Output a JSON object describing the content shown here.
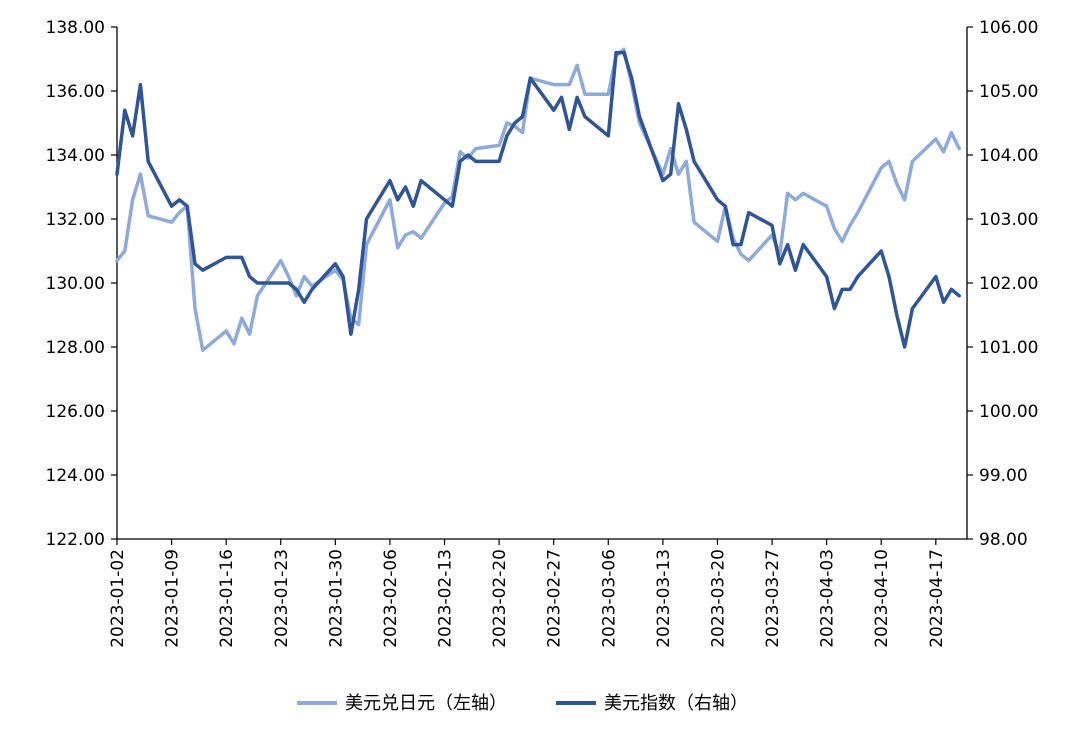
{
  "chart_data": {
    "type": "line",
    "title": "",
    "xlabel": "",
    "ylabel": "",
    "y_left": {
      "ylim": [
        122,
        138
      ],
      "ticks": [
        "122.00",
        "124.00",
        "126.00",
        "128.00",
        "130.00",
        "132.00",
        "134.00",
        "136.00",
        "138.00"
      ]
    },
    "y_right": {
      "ylim": [
        98,
        106
      ],
      "ticks": [
        "98.00",
        "99.00",
        "100.00",
        "101.00",
        "102.00",
        "103.00",
        "104.00",
        "105.00",
        "106.00"
      ]
    },
    "x_ticks": [
      "2023-01-02",
      "2023-01-09",
      "2023-01-16",
      "2023-01-23",
      "2023-01-30",
      "2023-02-06",
      "2023-02-13",
      "2023-02-20",
      "2023-02-27",
      "2023-03-06",
      "2023-03-13",
      "2023-03-20",
      "2023-03-27",
      "2023-04-03",
      "2023-04-10",
      "2023-04-17"
    ],
    "x_range": [
      "2023-01-02",
      "2023-04-21"
    ],
    "grid": false,
    "legend_position": "bottom",
    "colors": {
      "usdjpy": "#8eaadb",
      "dxy": "#2f5597"
    },
    "series": [
      {
        "name": "美元兑日元（左轴）",
        "axis": "left",
        "points": [
          [
            "2023-01-02",
            130.7
          ],
          [
            "2023-01-03",
            131.0
          ],
          [
            "2023-01-04",
            132.6
          ],
          [
            "2023-01-05",
            133.4
          ],
          [
            "2023-01-06",
            132.1
          ],
          [
            "2023-01-09",
            131.9
          ],
          [
            "2023-01-10",
            132.2
          ],
          [
            "2023-01-11",
            132.4
          ],
          [
            "2023-01-12",
            129.2
          ],
          [
            "2023-01-13",
            127.9
          ],
          [
            "2023-01-16",
            128.5
          ],
          [
            "2023-01-17",
            128.1
          ],
          [
            "2023-01-18",
            128.9
          ],
          [
            "2023-01-19",
            128.4
          ],
          [
            "2023-01-20",
            129.6
          ],
          [
            "2023-01-23",
            130.7
          ],
          [
            "2023-01-24",
            130.2
          ],
          [
            "2023-01-25",
            129.6
          ],
          [
            "2023-01-26",
            130.2
          ],
          [
            "2023-01-27",
            129.9
          ],
          [
            "2023-01-30",
            130.4
          ],
          [
            "2023-01-31",
            130.1
          ],
          [
            "2023-02-01",
            128.9
          ],
          [
            "2023-02-02",
            128.7
          ],
          [
            "2023-02-03",
            131.2
          ],
          [
            "2023-02-06",
            132.6
          ],
          [
            "2023-02-07",
            131.1
          ],
          [
            "2023-02-08",
            131.5
          ],
          [
            "2023-02-09",
            131.6
          ],
          [
            "2023-02-10",
            131.4
          ],
          [
            "2023-02-13",
            132.5
          ],
          [
            "2023-02-14",
            132.7
          ],
          [
            "2023-02-15",
            134.1
          ],
          [
            "2023-02-16",
            133.9
          ],
          [
            "2023-02-17",
            134.2
          ],
          [
            "2023-02-20",
            134.3
          ],
          [
            "2023-02-21",
            135.0
          ],
          [
            "2023-02-22",
            134.9
          ],
          [
            "2023-02-23",
            134.7
          ],
          [
            "2023-02-24",
            136.4
          ],
          [
            "2023-02-27",
            136.2
          ],
          [
            "2023-02-28",
            136.2
          ],
          [
            "2023-03-01",
            136.2
          ],
          [
            "2023-03-02",
            136.8
          ],
          [
            "2023-03-03",
            135.9
          ],
          [
            "2023-03-06",
            135.9
          ],
          [
            "2023-03-07",
            137.1
          ],
          [
            "2023-03-08",
            137.3
          ],
          [
            "2023-03-09",
            136.2
          ],
          [
            "2023-03-10",
            135.0
          ],
          [
            "2023-03-13",
            133.4
          ],
          [
            "2023-03-14",
            134.2
          ],
          [
            "2023-03-15",
            133.4
          ],
          [
            "2023-03-16",
            133.8
          ],
          [
            "2023-03-17",
            131.9
          ],
          [
            "2023-03-20",
            131.3
          ],
          [
            "2023-03-21",
            132.4
          ],
          [
            "2023-03-22",
            131.4
          ],
          [
            "2023-03-23",
            130.9
          ],
          [
            "2023-03-24",
            130.7
          ],
          [
            "2023-03-27",
            131.5
          ],
          [
            "2023-03-28",
            130.9
          ],
          [
            "2023-03-29",
            132.8
          ],
          [
            "2023-03-30",
            132.6
          ],
          [
            "2023-03-31",
            132.8
          ],
          [
            "2023-04-03",
            132.4
          ],
          [
            "2023-04-04",
            131.7
          ],
          [
            "2023-04-05",
            131.3
          ],
          [
            "2023-04-06",
            131.8
          ],
          [
            "2023-04-07",
            132.2
          ],
          [
            "2023-04-10",
            133.6
          ],
          [
            "2023-04-11",
            133.8
          ],
          [
            "2023-04-12",
            133.1
          ],
          [
            "2023-04-13",
            132.6
          ],
          [
            "2023-04-14",
            133.8
          ],
          [
            "2023-04-17",
            134.5
          ],
          [
            "2023-04-18",
            134.1
          ],
          [
            "2023-04-19",
            134.7
          ],
          [
            "2023-04-20",
            134.2
          ]
        ]
      },
      {
        "name": "美元指数（右轴）",
        "axis": "right",
        "points": [
          [
            "2023-01-02",
            103.7
          ],
          [
            "2023-01-03",
            104.7
          ],
          [
            "2023-01-04",
            104.3
          ],
          [
            "2023-01-05",
            105.1
          ],
          [
            "2023-01-06",
            103.9
          ],
          [
            "2023-01-09",
            103.2
          ],
          [
            "2023-01-10",
            103.3
          ],
          [
            "2023-01-11",
            103.2
          ],
          [
            "2023-01-12",
            102.3
          ],
          [
            "2023-01-13",
            102.2
          ],
          [
            "2023-01-16",
            102.4
          ],
          [
            "2023-01-17",
            102.4
          ],
          [
            "2023-01-18",
            102.4
          ],
          [
            "2023-01-19",
            102.1
          ],
          [
            "2023-01-20",
            102.0
          ],
          [
            "2023-01-23",
            102.0
          ],
          [
            "2023-01-24",
            102.0
          ],
          [
            "2023-01-25",
            101.9
          ],
          [
            "2023-01-26",
            101.7
          ],
          [
            "2023-01-27",
            101.9
          ],
          [
            "2023-01-30",
            102.3
          ],
          [
            "2023-01-31",
            102.1
          ],
          [
            "2023-02-01",
            101.2
          ],
          [
            "2023-02-02",
            101.9
          ],
          [
            "2023-02-03",
            103.0
          ],
          [
            "2023-02-06",
            103.6
          ],
          [
            "2023-02-07",
            103.3
          ],
          [
            "2023-02-08",
            103.5
          ],
          [
            "2023-02-09",
            103.2
          ],
          [
            "2023-02-10",
            103.6
          ],
          [
            "2023-02-13",
            103.3
          ],
          [
            "2023-02-14",
            103.2
          ],
          [
            "2023-02-15",
            103.9
          ],
          [
            "2023-02-16",
            104.0
          ],
          [
            "2023-02-17",
            103.9
          ],
          [
            "2023-02-20",
            103.9
          ],
          [
            "2023-02-21",
            104.3
          ],
          [
            "2023-02-22",
            104.5
          ],
          [
            "2023-02-23",
            104.6
          ],
          [
            "2023-02-24",
            105.2
          ],
          [
            "2023-02-27",
            104.7
          ],
          [
            "2023-02-28",
            104.9
          ],
          [
            "2023-03-01",
            104.4
          ],
          [
            "2023-03-02",
            104.9
          ],
          [
            "2023-03-03",
            104.6
          ],
          [
            "2023-03-06",
            104.3
          ],
          [
            "2023-03-07",
            105.6
          ],
          [
            "2023-03-08",
            105.6
          ],
          [
            "2023-03-09",
            105.2
          ],
          [
            "2023-03-10",
            104.6
          ],
          [
            "2023-03-13",
            103.6
          ],
          [
            "2023-03-14",
            103.7
          ],
          [
            "2023-03-15",
            104.8
          ],
          [
            "2023-03-16",
            104.4
          ],
          [
            "2023-03-17",
            103.9
          ],
          [
            "2023-03-20",
            103.3
          ],
          [
            "2023-03-21",
            103.2
          ],
          [
            "2023-03-22",
            102.6
          ],
          [
            "2023-03-23",
            102.6
          ],
          [
            "2023-03-24",
            103.1
          ],
          [
            "2023-03-27",
            102.9
          ],
          [
            "2023-03-28",
            102.3
          ],
          [
            "2023-03-29",
            102.6
          ],
          [
            "2023-03-30",
            102.2
          ],
          [
            "2023-03-31",
            102.6
          ],
          [
            "2023-04-03",
            102.1
          ],
          [
            "2023-04-04",
            101.6
          ],
          [
            "2023-04-05",
            101.9
          ],
          [
            "2023-04-06",
            101.9
          ],
          [
            "2023-04-07",
            102.1
          ],
          [
            "2023-04-10",
            102.5
          ],
          [
            "2023-04-11",
            102.1
          ],
          [
            "2023-04-12",
            101.5
          ],
          [
            "2023-04-13",
            101.0
          ],
          [
            "2023-04-14",
            101.6
          ],
          [
            "2023-04-17",
            102.1
          ],
          [
            "2023-04-18",
            101.7
          ],
          [
            "2023-04-19",
            101.9
          ],
          [
            "2023-04-20",
            101.8
          ]
        ]
      }
    ]
  }
}
